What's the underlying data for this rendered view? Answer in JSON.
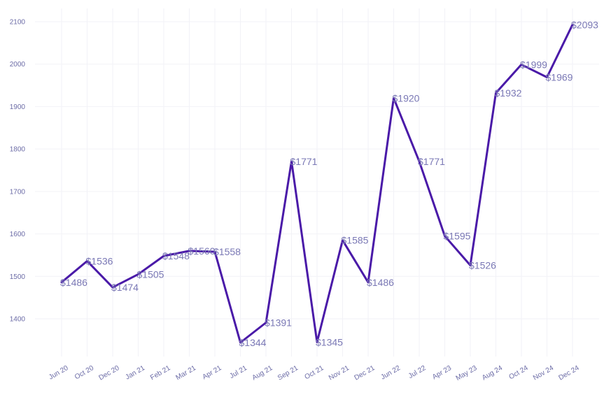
{
  "chart_data": {
    "type": "line",
    "title": "",
    "xlabel": "",
    "ylabel": "",
    "categories": [
      "Jun 20",
      "Oct 20",
      "Dec 20",
      "Jan 21",
      "Feb 21",
      "Mar 21",
      "Apr 21",
      "Jul 21",
      "Aug 21",
      "Sep 21",
      "Oct 21",
      "Nov 21",
      "Dec 21",
      "Jun 22",
      "Jul 22",
      "Apr 23",
      "May 23",
      "Aug 24",
      "Oct 24",
      "Nov 24",
      "Dec 24"
    ],
    "series": [
      {
        "values": [
          1486,
          1536,
          1474,
          1505,
          1548,
          1560,
          1558,
          1344,
          1391,
          1771,
          1345,
          1585,
          1486,
          1920,
          1771,
          1595,
          1526,
          1932,
          1999,
          1969,
          2093
        ]
      }
    ],
    "data_labels": [
      "$1486",
      "$1536",
      "$1474",
      "$1505",
      "$1548",
      "$1560",
      "$1558",
      "$1344",
      "$1391",
      "$1771",
      "$1345",
      "$1585",
      "$1486",
      "$1920",
      "$1771",
      "$1595",
      "$1526",
      "$1932",
      "$1999",
      "$1969",
      "$2093"
    ],
    "y_ticks": [
      1400,
      1500,
      1600,
      1700,
      1800,
      1900,
      2000,
      2100
    ],
    "ylim": [
      1310,
      2130
    ],
    "grid": true,
    "colors": {
      "line": "#4a1aa8",
      "label": "#7a78b5",
      "tick": "#6b6ba6",
      "grid": "#f2f2f7"
    }
  }
}
